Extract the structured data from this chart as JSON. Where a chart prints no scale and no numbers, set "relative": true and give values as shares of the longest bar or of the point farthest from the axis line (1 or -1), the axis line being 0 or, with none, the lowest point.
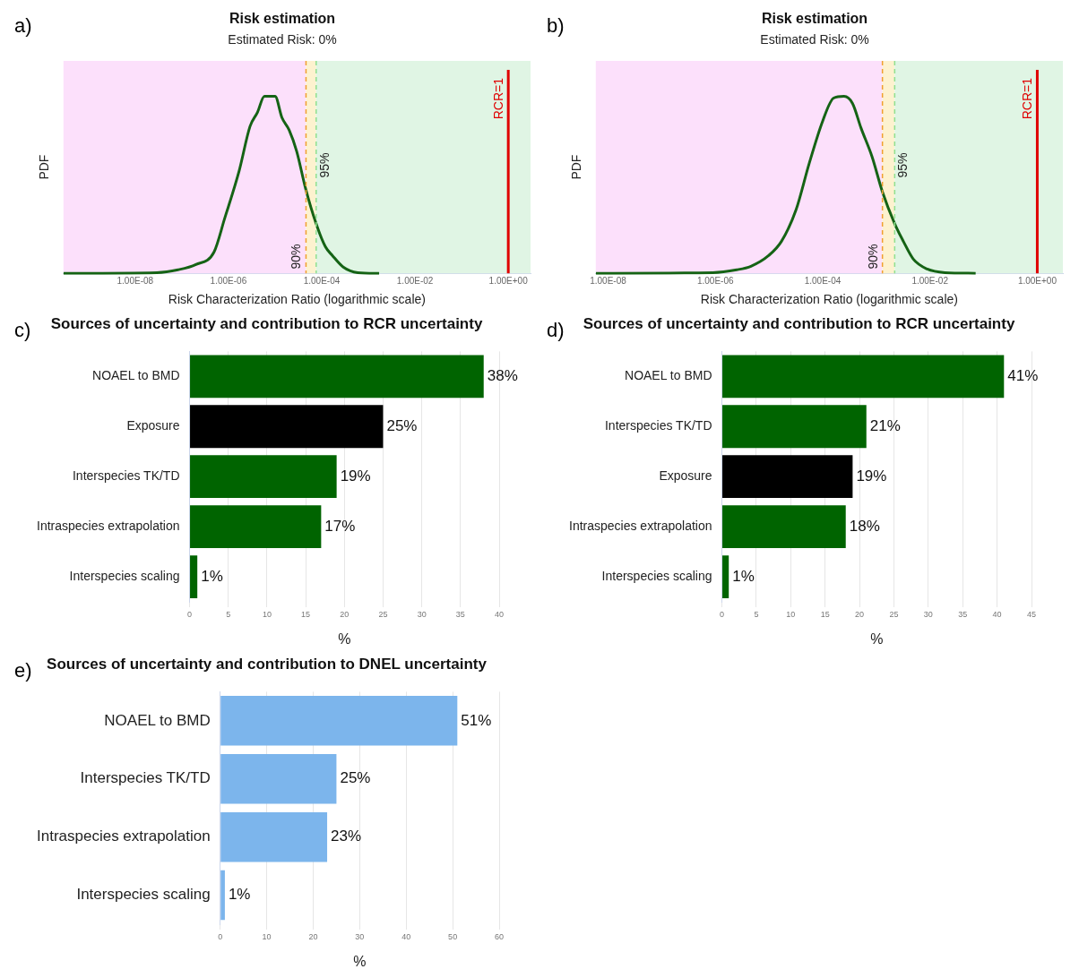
{
  "chart_data": [
    {
      "type": "line",
      "annotations": [
        "a)",
        {
          "text": "90%",
          "x": 4.6e-05
        },
        {
          "text": "95%",
          "x": 7.6e-05
        }
      ],
      "title": "Risk estimation",
      "subtitle": "Estimated Risk: 0%",
      "xlabel": "Risk Characterization Ratio (logarithmic scale)",
      "ylabel": "PDF",
      "relative": true,
      "log": "x",
      "x": [
        2.9e-10,
        2.9e-08,
        8.3e-08,
        2e-07,
        4.9e-07,
        8.3e-07,
        1.7e-06,
        2.9e-06,
        4.2e-06,
        5.9e-06,
        1e-05,
        1.4e-05,
        2e-05,
        2.9e-05,
        4.5e-05,
        7.6e-05,
        0.00012,
        0.00017,
        0.00029,
        0.00059,
        0.0017
      ],
      "series": [
        {
          "color": "#156315",
          "values": [
            0,
            0.004,
            0.02,
            0.05,
            0.12,
            0.31,
            0.58,
            0.83,
            0.91,
            1.0,
            1.0,
            0.88,
            0.81,
            0.69,
            0.48,
            0.28,
            0.15,
            0.1,
            0.035,
            0.004,
            0
          ]
        }
      ],
      "xlim": [
        2.9e-10,
        3
      ],
      "xticks": [
        {
          "value": 1e-08,
          "label": "1.00E-08"
        },
        {
          "value": 1e-06,
          "label": "1.00E-06"
        },
        {
          "value": 0.0001,
          "label": "1.00E-04"
        },
        {
          "value": 0.01,
          "label": "1.00E-02"
        },
        {
          "value": 1,
          "label": "1.00E+00"
        }
      ],
      "bands": [
        {
          "axis": "x",
          "from": 2.9e-10,
          "to": 4.6e-05,
          "color": "#fce0fb"
        },
        {
          "axis": "x",
          "from": 4.6e-05,
          "to": 7.6e-05,
          "color": "#fdf2cf"
        },
        {
          "axis": "x",
          "from": 7.6e-05,
          "to": 3,
          "color": "#e0f5e4"
        }
      ],
      "ref_lines": [
        {
          "axis": "x",
          "value": 4.6e-05,
          "color": "#f0a030",
          "line_style": "dashed"
        },
        {
          "axis": "x",
          "value": 7.6e-05,
          "color": "#90e090",
          "line_style": "dashed"
        },
        {
          "axis": "x",
          "value": 1,
          "label": "RCR=1",
          "color": "#e00000",
          "line_style": "solid"
        }
      ]
    },
    {
      "type": "line",
      "annotations": [
        "b)",
        {
          "text": "90%",
          "x": 0.0013
        },
        {
          "text": "95%",
          "x": 0.0022
        }
      ],
      "title": "Risk estimation",
      "subtitle": "Estimated Risk: 0%",
      "xlabel": "Risk Characterization Ratio (logarithmic scale)",
      "ylabel": "PDF",
      "relative": true,
      "log": "x",
      "x": [
        5.9e-09,
        8.9e-07,
        2.5e-06,
        4.6e-06,
        9.8e-06,
        1.7e-05,
        3.2e-05,
        5.6e-05,
        0.0001,
        0.00016,
        0.00025,
        0.00036,
        0.00052,
        0.00083,
        0.0013,
        0.0022,
        0.0032,
        0.0049,
        0.0089,
        0.019,
        0.071
      ],
      "series": [
        {
          "color": "#156315",
          "values": [
            0,
            0.004,
            0.02,
            0.04,
            0.1,
            0.18,
            0.36,
            0.62,
            0.86,
            0.99,
            1.0,
            0.96,
            0.82,
            0.66,
            0.46,
            0.28,
            0.18,
            0.08,
            0.024,
            0.004,
            0
          ]
        }
      ],
      "xlim": [
        5.9e-09,
        3
      ],
      "xticks": [
        {
          "value": 1e-08,
          "label": "1.00E-08"
        },
        {
          "value": 1e-06,
          "label": "1.00E-06"
        },
        {
          "value": 0.0001,
          "label": "1.00E-04"
        },
        {
          "value": 0.01,
          "label": "1.00E-02"
        },
        {
          "value": 1,
          "label": "1.00E+00"
        }
      ],
      "bands": [
        {
          "axis": "x",
          "from": 5.9e-09,
          "to": 0.0013,
          "color": "#fce0fb"
        },
        {
          "axis": "x",
          "from": 0.0013,
          "to": 0.0022,
          "color": "#fdf2cf"
        },
        {
          "axis": "x",
          "from": 0.0022,
          "to": 3,
          "color": "#e0f5e4"
        }
      ],
      "ref_lines": [
        {
          "axis": "x",
          "value": 0.0013,
          "color": "#f0a030",
          "line_style": "dashed"
        },
        {
          "axis": "x",
          "value": 0.0022,
          "color": "#90e090",
          "line_style": "dashed"
        },
        {
          "axis": "x",
          "value": 1,
          "label": "RCR=1",
          "color": "#e00000",
          "line_style": "solid"
        }
      ]
    },
    {
      "type": "bar",
      "orientation": "horizontal",
      "annotations": [
        "c)"
      ],
      "title": "Sources of uncertainty and contribution to RCR uncertainty",
      "xlabel": "%",
      "grid": "x",
      "categories": [
        "NOAEL to BMD",
        "Exposure",
        "Interspecies TK/TD",
        "Intraspecies extrapolation",
        "Interspecies scaling"
      ],
      "values": [
        38,
        25,
        19,
        17,
        1
      ],
      "value_labels": [
        "38%",
        "25%",
        "19%",
        "17%",
        "1%"
      ],
      "colors": [
        "#006400",
        "#000000",
        "#006400",
        "#006400",
        "#006400"
      ],
      "xlim": [
        0,
        40
      ],
      "xticks": [
        0,
        5,
        10,
        15,
        20,
        25,
        30,
        35,
        40
      ]
    },
    {
      "type": "bar",
      "orientation": "horizontal",
      "annotations": [
        "d)"
      ],
      "title": "Sources of uncertainty and contribution to RCR uncertainty",
      "xlabel": "%",
      "grid": "x",
      "categories": [
        "NOAEL to BMD",
        "Interspecies TK/TD",
        "Exposure",
        "Intraspecies extrapolation",
        "Interspecies scaling"
      ],
      "values": [
        41,
        21,
        19,
        18,
        1
      ],
      "value_labels": [
        "41%",
        "21%",
        "19%",
        "18%",
        "1%"
      ],
      "colors": [
        "#006400",
        "#006400",
        "#000000",
        "#006400",
        "#006400"
      ],
      "xlim": [
        0,
        45
      ],
      "xticks": [
        0,
        5,
        10,
        15,
        20,
        25,
        30,
        35,
        40,
        45
      ]
    },
    {
      "type": "bar",
      "orientation": "horizontal",
      "annotations": [
        "e)"
      ],
      "title": "Sources of uncertainty and contribution to DNEL uncertainty",
      "xlabel": "%",
      "grid": "x",
      "categories": [
        "NOAEL to BMD",
        "Interspecies TK/TD",
        "Intraspecies extrapolation",
        "Interspecies scaling"
      ],
      "values": [
        51,
        25,
        23,
        1
      ],
      "value_labels": [
        "51%",
        "25%",
        "23%",
        "1%"
      ],
      "colors": [
        "#7cb5ec",
        "#7cb5ec",
        "#7cb5ec",
        "#7cb5ec"
      ],
      "xlim": [
        0,
        60
      ],
      "xticks": [
        0,
        10,
        20,
        30,
        40,
        50,
        60
      ]
    }
  ]
}
